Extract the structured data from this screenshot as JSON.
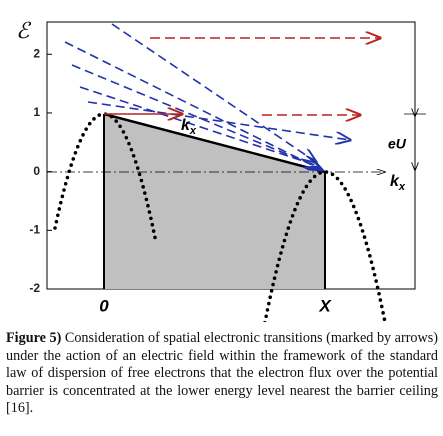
{
  "figure": {
    "y_label": "ℰ",
    "yticks": [
      2,
      1,
      0,
      -1,
      -2
    ],
    "ylim": [
      -2,
      2.55
    ],
    "x_labels": [
      "0",
      "X"
    ],
    "k_label": "k",
    "k_subscript": "x",
    "eU_label": "eU"
  },
  "caption": {
    "label": "Figure 5)",
    "text": "Consideration of spatial electronic transitions (marked by arrows) under the action of an electric field within the framework of the standard law of dispersion of free electrons that the electron flux over the potential barrier is concentrated at the lower energy level nearest the barrier ceiling [16]."
  }
}
